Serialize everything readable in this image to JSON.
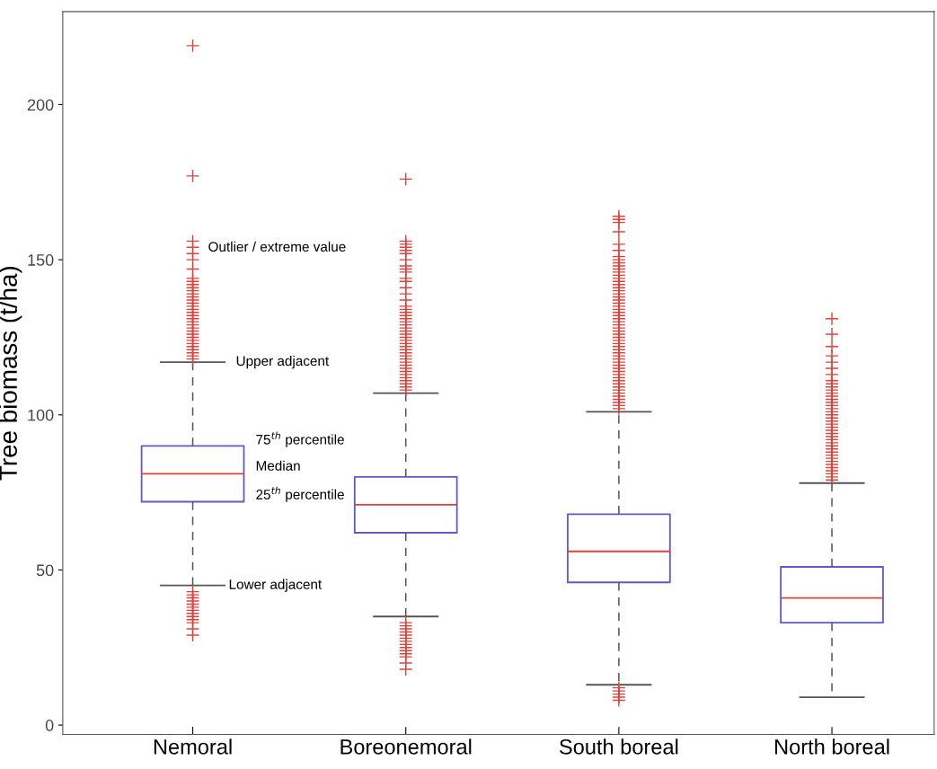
{
  "chart_data": {
    "type": "box",
    "ylabel": "Tree biomass (t/ha)",
    "categories": [
      "Nemoral",
      "Boreonemoral",
      "South boreal",
      "North boreal"
    ],
    "ylim": [
      -3,
      230
    ],
    "yticks": [
      0,
      50,
      100,
      150,
      200
    ],
    "grid": false,
    "marker": "cross",
    "series": [
      {
        "color": "#5c5cc8",
        "boxes": [
          {
            "low": 45,
            "q1": 72,
            "median": 81,
            "q3": 90,
            "high": 117,
            "outliers": [
              219,
              177,
              156,
              154,
              152,
              150,
              147,
              144,
              143,
              142,
              141,
              140,
              139,
              138,
              137,
              136,
              135,
              134,
              133,
              132,
              131,
              130,
              129,
              128,
              127,
              126,
              125,
              124,
              123,
              122,
              121,
              120,
              119,
              118,
              43,
              42,
              41,
              40,
              39,
              38,
              37,
              36,
              35,
              34,
              33,
              31,
              29
            ]
          },
          {
            "low": 35,
            "q1": 62,
            "median": 71,
            "q3": 80,
            "high": 107,
            "outliers": [
              176,
              156,
              155,
              154,
              153,
              152,
              150,
              148,
              147,
              146,
              144,
              143,
              141,
              139,
              137,
              135,
              134,
              133,
              132,
              131,
              130,
              129,
              128,
              127,
              126,
              125,
              124,
              123,
              122,
              121,
              120,
              119,
              118,
              117,
              116,
              115,
              114,
              113,
              112,
              111,
              110,
              109,
              108,
              33,
              32,
              31,
              30,
              29,
              28,
              27,
              26,
              25,
              24,
              23,
              22,
              20,
              18
            ]
          },
          {
            "low": 13,
            "q1": 46,
            "median": 56,
            "q3": 68,
            "high": 101,
            "outliers": [
              164,
              163,
              162,
              159,
              155,
              153,
              151,
              150,
              149,
              148,
              147,
              146,
              145,
              144,
              143,
              142,
              141,
              140,
              139,
              138,
              137,
              136,
              135,
              134,
              133,
              132,
              131,
              130,
              129,
              128,
              127,
              126,
              125,
              124,
              123,
              122,
              121,
              120,
              119,
              118,
              117,
              116,
              115,
              114,
              113,
              112,
              111,
              110,
              109,
              108,
              107,
              106,
              105,
              104,
              103,
              102,
              12,
              11,
              10,
              9,
              8
            ]
          },
          {
            "low": 9,
            "q1": 33,
            "median": 41,
            "q3": 51,
            "high": 78,
            "outliers": [
              131,
              126,
              122,
              119,
              117,
              115,
              113,
              111,
              110,
              109,
              108,
              107,
              106,
              105,
              104,
              103,
              102,
              101,
              100,
              99,
              98,
              97,
              96,
              95,
              94,
              93,
              92,
              91,
              90,
              89,
              88,
              87,
              86,
              85,
              84,
              83,
              82,
              81,
              80,
              79
            ]
          }
        ]
      }
    ],
    "annotations": [
      "Outlier / extreme value",
      "Upper adjacent",
      "75$^{th}$ percentile",
      "Median",
      "25$^{th}$ percentile",
      "Lower adjacent"
    ]
  }
}
